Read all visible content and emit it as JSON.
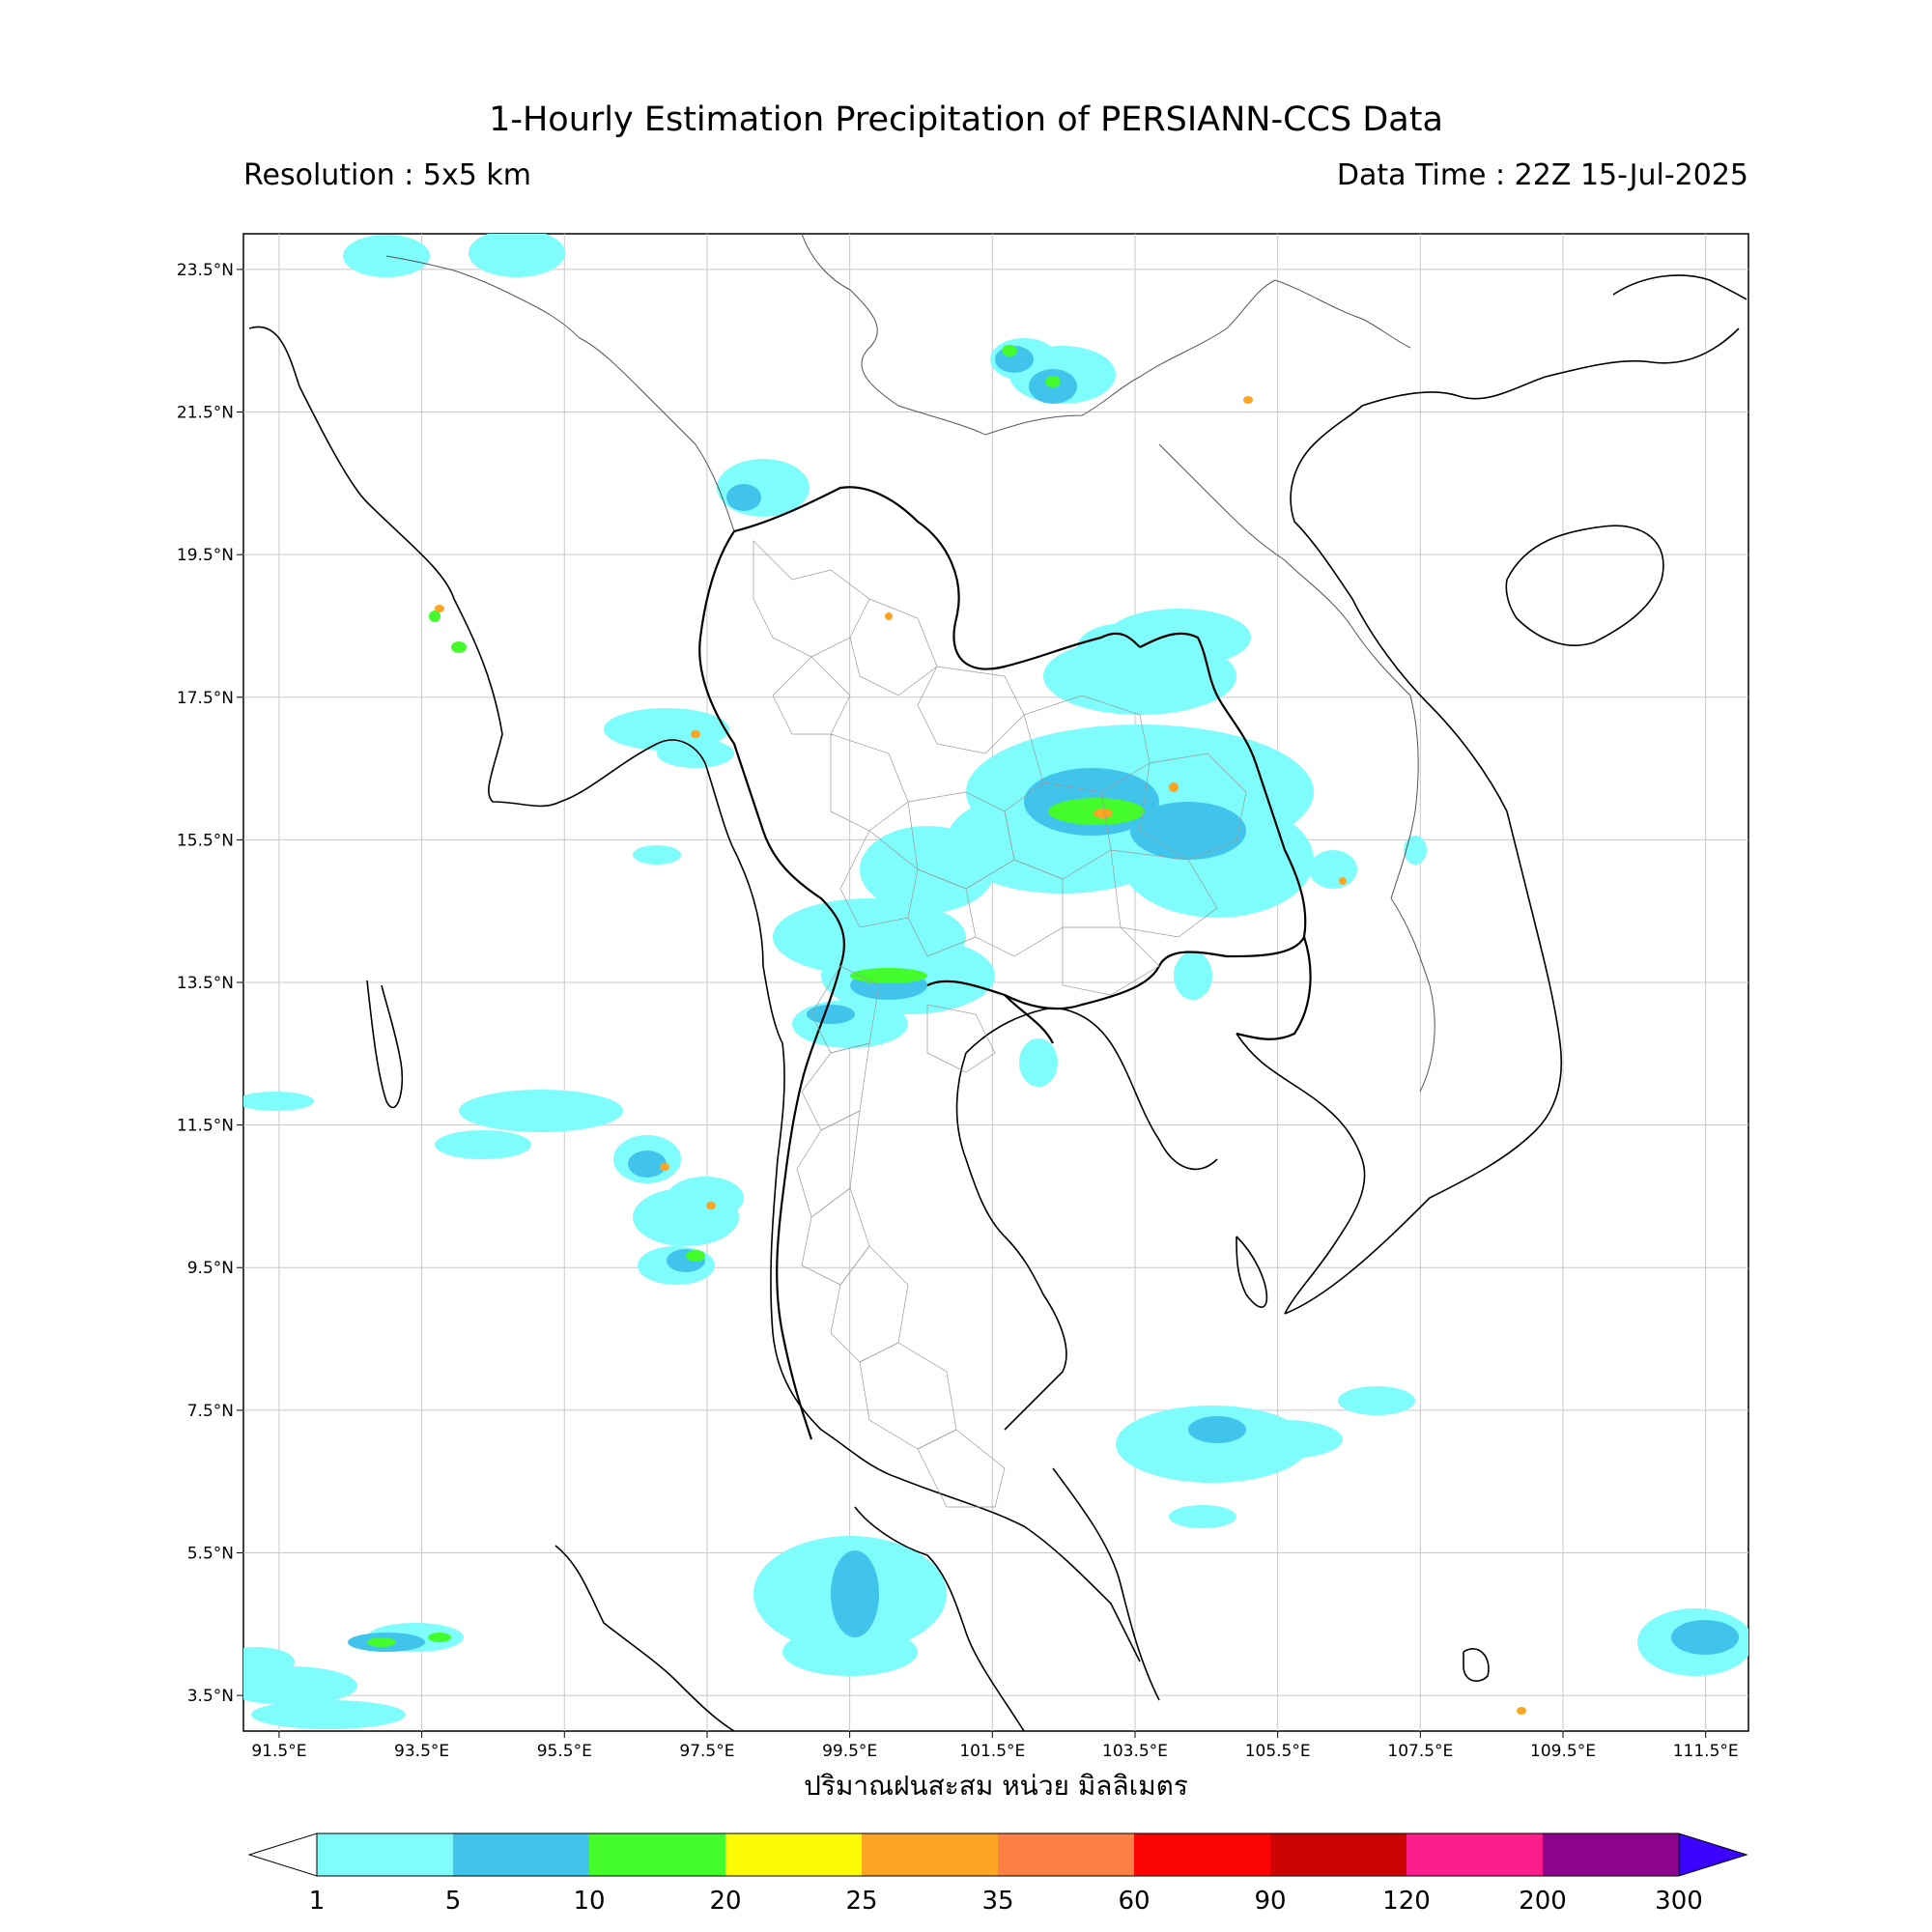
{
  "title": "1-Hourly Estimation Precipitation of PERSIANN-CCS Data",
  "resolution": "Resolution : 5x5 km",
  "data_time": "Data Time : 22Z 15-Jul-2025",
  "x_axis_label": "ปริมาณฝนสะสม หน่วย มิลลิเมตร",
  "lon_ticks": [
    "91.5°E",
    "93.5°E",
    "95.5°E",
    "97.5°E",
    "99.5°E",
    "101.5°E",
    "103.5°E",
    "105.5°E",
    "107.5°E",
    "109.5°E",
    "111.5°E"
  ],
  "lat_ticks": [
    "23.5°N",
    "21.5°N",
    "19.5°N",
    "17.5°N",
    "15.5°N",
    "13.5°N",
    "11.5°N",
    "9.5°N",
    "7.5°N",
    "5.5°N",
    "3.5°N"
  ],
  "colorbar": {
    "levels": [
      "1",
      "5",
      "10",
      "20",
      "25",
      "35",
      "60",
      "90",
      "120",
      "200",
      "300"
    ],
    "colors": [
      "#7ffcfc",
      "#40c4ec",
      "#44fc2c",
      "#fcfc04",
      "#fca424",
      "#fc8044",
      "#fc0404",
      "#cc0404",
      "#fc1c8c",
      "#8c048c"
    ],
    "extend_color": "#3c04fc"
  },
  "map": {
    "extent": {
      "lon_min": 91.0,
      "lon_max": 112.1,
      "lat_min": 3.0,
      "lat_max": 24.0
    },
    "rain_colors": {
      "light": "#7ffcfc",
      "medium": "#40c4ec",
      "heavy": "#44fc2c",
      "peak": "#fca424"
    }
  }
}
